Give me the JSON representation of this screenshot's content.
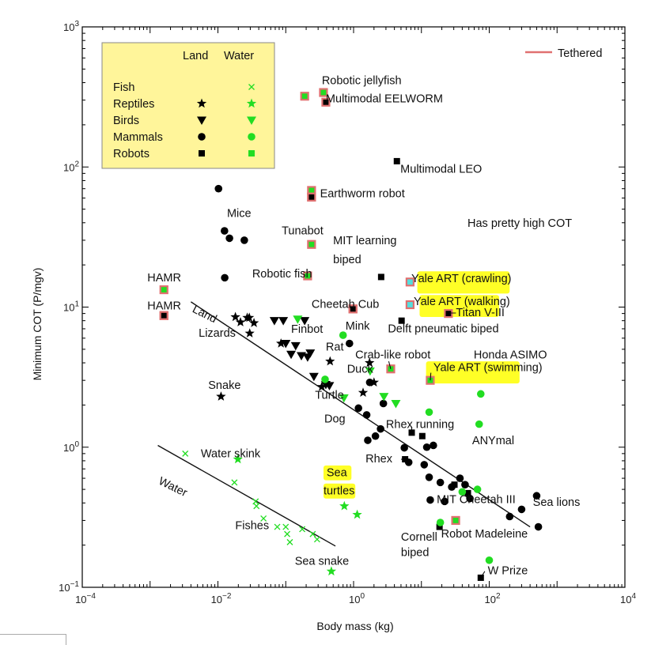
{
  "chart_data": {
    "type": "scatter",
    "xscale": "log",
    "yscale": "log",
    "xlim": [
      0.0001,
      10000
    ],
    "ylim": [
      0.1,
      1000
    ],
    "xlabel": "Body mass (kg)",
    "ylabel": "Minimum COT (P/mgv)",
    "xticks": [
      {
        "value": 0.0001,
        "base": "10",
        "exp": "−4"
      },
      {
        "value": 0.01,
        "base": "10",
        "exp": "−2"
      },
      {
        "value": 1,
        "base": "10",
        "exp": "0"
      },
      {
        "value": 100,
        "base": "10",
        "exp": "2"
      },
      {
        "value": 10000,
        "base": "10",
        "exp": "4"
      }
    ],
    "yticks": [
      {
        "value": 0.1,
        "base": "10",
        "exp": "−1"
      },
      {
        "value": 1,
        "base": "10",
        "exp": "0"
      },
      {
        "value": 10,
        "base": "10",
        "exp": "1"
      },
      {
        "value": 100,
        "base": "10",
        "exp": "2"
      },
      {
        "value": 1000,
        "base": "10",
        "exp": "3"
      }
    ],
    "legend": {
      "placement": "top-left",
      "col_land": "Land",
      "col_water": "Water",
      "rows": [
        {
          "label": "Fish",
          "land": "",
          "water": "x"
        },
        {
          "label": "Reptiles",
          "land": "star",
          "water": "star"
        },
        {
          "label": "Birds",
          "land": "tri",
          "water": "tri"
        },
        {
          "label": "Mammals",
          "land": "circle",
          "water": "circle"
        },
        {
          "label": "Robots",
          "land": "square",
          "water": "square"
        }
      ]
    },
    "tethered_legend": "Tethered",
    "colors": {
      "land": "#000000",
      "water": "#22dd22",
      "tethered": "#e07070",
      "highlight": "#ffff00",
      "legend_bg": "#fff59a",
      "cyan": "#55dddd"
    },
    "fit_lines": [
      {
        "name": "Land",
        "x": [
          0.004,
          400
        ],
        "y": [
          10.9,
          0.27
        ]
      },
      {
        "name": "Water",
        "x": [
          0.0013,
          0.54
        ],
        "y": [
          1.03,
          0.197
        ]
      }
    ],
    "series": [
      {
        "group": "land",
        "marker": "circle",
        "points": [
          [
            0.0102,
            70
          ],
          [
            0.0125,
            35
          ],
          [
            0.0148,
            31
          ],
          [
            0.0245,
            30
          ],
          [
            0.0126,
            16.2
          ],
          [
            0.87,
            5.5
          ],
          [
            1.18,
            1.9
          ],
          [
            1.56,
            1.7
          ],
          [
            1.62,
            1.12
          ],
          [
            2.1,
            1.2
          ],
          [
            2.5,
            1.35
          ],
          [
            2.75,
            2.05
          ],
          [
            1.73,
            2.9
          ],
          [
            5.6,
            0.99
          ],
          [
            6.5,
            0.78
          ],
          [
            12,
            1.0
          ],
          [
            15,
            1.03
          ],
          [
            11,
            0.75
          ],
          [
            13,
            0.61
          ],
          [
            19,
            0.56
          ],
          [
            28,
            0.52
          ],
          [
            37,
            0.6
          ],
          [
            13.5,
            0.42
          ],
          [
            22,
            0.41
          ],
          [
            44,
            0.54
          ],
          [
            52,
            0.43
          ],
          [
            200,
            0.32
          ],
          [
            300,
            0.36
          ],
          [
            500,
            0.45
          ],
          [
            530,
            0.27
          ]
        ]
      },
      {
        "group": "land",
        "marker": "star",
        "points": [
          [
            0.0181,
            8.5
          ],
          [
            0.0215,
            7.8
          ],
          [
            0.027,
            8.4
          ],
          [
            0.029,
            8.4
          ],
          [
            0.034,
            7.7
          ],
          [
            0.0294,
            6.5
          ],
          [
            0.085,
            5.5
          ],
          [
            0.0111,
            2.3
          ],
          [
            0.45,
            4.1
          ],
          [
            0.34,
            2.7
          ],
          [
            1.72,
            4.0
          ],
          [
            1.38,
            2.45
          ],
          [
            2.0,
            2.9
          ]
        ]
      },
      {
        "group": "land",
        "marker": "tri",
        "points": [
          [
            0.068,
            8.0
          ],
          [
            0.092,
            8.0
          ],
          [
            0.19,
            8.0
          ],
          [
            0.1,
            5.5
          ],
          [
            0.14,
            5.3
          ],
          [
            0.12,
            4.6
          ],
          [
            0.17,
            4.5
          ],
          [
            0.21,
            4.4
          ],
          [
            0.23,
            4.7
          ],
          [
            0.26,
            3.2
          ],
          [
            0.39,
            2.8
          ],
          [
            0.44,
            2.75
          ]
        ]
      },
      {
        "group": "land",
        "marker": "square",
        "points": [
          [
            2.55,
            16.4
          ],
          [
            4.35,
            110
          ],
          [
            5.1,
            8.0
          ],
          [
            25,
            9.0
          ],
          [
            7.2,
            1.27
          ],
          [
            10.3,
            1.2
          ],
          [
            5.75,
            0.82
          ],
          [
            30.7,
            0.54
          ],
          [
            48.5,
            0.47
          ],
          [
            18.5,
            0.27
          ],
          [
            75,
            0.117
          ]
        ]
      },
      {
        "group": "water",
        "marker": "x",
        "points": [
          [
            0.0033,
            0.9
          ],
          [
            0.0175,
            0.56
          ],
          [
            0.036,
            0.41
          ],
          [
            0.037,
            0.38
          ],
          [
            0.047,
            0.31
          ],
          [
            0.075,
            0.27
          ],
          [
            0.1,
            0.27
          ],
          [
            0.105,
            0.24
          ],
          [
            0.115,
            0.21
          ],
          [
            0.175,
            0.26
          ],
          [
            0.25,
            0.24
          ],
          [
            0.29,
            0.22
          ]
        ]
      },
      {
        "group": "water",
        "marker": "star",
        "points": [
          [
            0.0197,
            0.82
          ],
          [
            0.73,
            0.38
          ],
          [
            1.13,
            0.33
          ],
          [
            0.47,
            0.13
          ]
        ]
      },
      {
        "group": "water",
        "marker": "tri",
        "points": [
          [
            0.15,
            8.2
          ],
          [
            0.72,
            2.25
          ],
          [
            1.75,
            3.5
          ],
          [
            2.8,
            2.3
          ],
          [
            4.2,
            2.05
          ]
        ]
      },
      {
        "group": "water",
        "marker": "circle",
        "points": [
          [
            0.7,
            6.3
          ],
          [
            0.38,
            3.05
          ],
          [
            13,
            1.78
          ],
          [
            71,
            1.46
          ],
          [
            75,
            2.4
          ],
          [
            40,
            0.48
          ],
          [
            67,
            0.5
          ],
          [
            19,
            0.29
          ],
          [
            100,
            0.156
          ]
        ]
      },
      {
        "group": "tethered",
        "marker": "square",
        "points": [
          [
            0.0016,
            13.3
          ],
          [
            0.0016,
            8.7
          ],
          [
            0.36,
            340
          ],
          [
            0.19,
            320
          ],
          [
            0.24,
            68
          ],
          [
            0.24,
            61
          ],
          [
            0.24,
            28
          ],
          [
            0.21,
            16.7
          ],
          [
            0.98,
            9.7
          ],
          [
            3.53,
            3.62
          ],
          [
            13.5,
            3.0
          ],
          [
            32,
            0.3
          ]
        ]
      },
      {
        "group": "cyan",
        "marker": "square",
        "points": [
          [
            6.8,
            15.1
          ],
          [
            6.8,
            10.4
          ]
        ]
      }
    ],
    "annotations": [
      {
        "text": "Robotic jellyfish",
        "x": 0.34,
        "y": 390
      },
      {
        "text": "Multimodal EELWORM",
        "x": 0.39,
        "y": 290
      },
      {
        "text": "Multimodal LEO",
        "x": 4.9,
        "y": 91
      },
      {
        "text": "Earthworm robot",
        "x": 0.32,
        "y": 61
      },
      {
        "text": "Mice",
        "x": 0.0136,
        "y": 44
      },
      {
        "text": "Tunabot",
        "x": 0.087,
        "y": 33
      },
      {
        "text": "MIT learning",
        "x": 0.5,
        "y": 28
      },
      {
        "text": "biped",
        "x": 0.5,
        "y": 20.5
      },
      {
        "text": "Robotic fish",
        "x": 0.032,
        "y": 16.3
      },
      {
        "text": "HAMR",
        "x": 0.00091,
        "y": 15.3
      },
      {
        "text": "HAMR",
        "x": 0.00091,
        "y": 9.6
      },
      {
        "text": "Yale ART (crawling)",
        "x": 7.1,
        "y": 15.1
      },
      {
        "text": "Cheetah Cub",
        "x": 0.24,
        "y": 9.9
      },
      {
        "text": "Yale ART (walking)",
        "x": 7.7,
        "y": 10.3
      },
      {
        "text": "–Titan V-III",
        "x": 26,
        "y": 8.6
      },
      {
        "text": "Lizards",
        "x": 0.0052,
        "y": 6.15
      },
      {
        "text": "Finbot",
        "x": 0.12,
        "y": 6.55
      },
      {
        "text": "Mink",
        "x": 0.76,
        "y": 6.9
      },
      {
        "text": "Delft pneumatic biped",
        "x": 3.2,
        "y": 6.6
      },
      {
        "text": "Rat",
        "x": 0.39,
        "y": 4.9
      },
      {
        "text": "Crab-like robot",
        "x": 1.06,
        "y": 4.3
      },
      {
        "text": "Honda ASIMO",
        "x": 59,
        "y": 4.3
      },
      {
        "text": "Duck",
        "x": 0.8,
        "y": 3.4
      },
      {
        "text": "Yale ART (swimming)",
        "x": 15,
        "y": 3.5
      },
      {
        "text": "Snake",
        "x": 0.0072,
        "y": 2.6
      },
      {
        "text": "Turtle",
        "x": 0.27,
        "y": 2.22
      },
      {
        "text": "Dog",
        "x": 0.37,
        "y": 1.5
      },
      {
        "text": "Rhex running",
        "x": 3.0,
        "y": 1.37
      },
      {
        "text": "ANYmal",
        "x": 56,
        "y": 1.05
      },
      {
        "text": "Water skink",
        "x": 0.0056,
        "y": 0.85
      },
      {
        "text": "Rhex",
        "x": 1.5,
        "y": 0.78
      },
      {
        "text": "Sea",
        "x": 0.4,
        "y": 0.62
      },
      {
        "text": "turtles",
        "x": 0.36,
        "y": 0.46
      },
      {
        "text": "MIT Cheetah III",
        "x": 16.8,
        "y": 0.4
      },
      {
        "text": "Sea lions",
        "x": 440,
        "y": 0.38
      },
      {
        "text": "Fishes",
        "x": 0.018,
        "y": 0.26
      },
      {
        "text": "Cornell",
        "x": 5.0,
        "y": 0.215
      },
      {
        "text": "biped",
        "x": 5.0,
        "y": 0.167
      },
      {
        "text": "Robot Madeleine",
        "x": 19.5,
        "y": 0.227
      },
      {
        "text": "Sea snake",
        "x": 0.136,
        "y": 0.145
      },
      {
        "text": "W Prize",
        "x": 95,
        "y": 0.124
      }
    ],
    "rotated_labels": [
      {
        "text": "Land",
        "x": 0.0041,
        "y": 9.3,
        "angle": 27
      },
      {
        "text": "Water",
        "x": 0.0013,
        "y": 0.55,
        "angle": 26
      }
    ],
    "highlights": [
      {
        "x0": 8.7,
        "x1": 200,
        "y0": 12.5,
        "y1": 18.0
      },
      {
        "x0": 9.4,
        "x1": 140,
        "y0": 8.5,
        "y1": 12.2
      },
      {
        "x0": 11.7,
        "x1": 280,
        "y0": 2.85,
        "y1": 4.1
      },
      {
        "x0": 0.36,
        "x1": 0.93,
        "y0": 0.58,
        "y1": 0.74
      },
      {
        "x0": 0.36,
        "x1": 1.06,
        "y0": 0.43,
        "y1": 0.55
      }
    ],
    "note": "Has pretty high COT"
  }
}
